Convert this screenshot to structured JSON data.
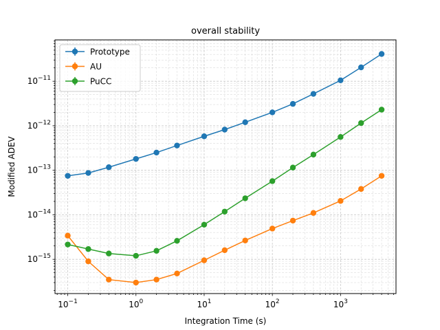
{
  "chart_data": {
    "type": "line",
    "title": "overall stability",
    "xlabel": "Integration Time (s)",
    "ylabel": "Modified ADEV",
    "xscale": "log",
    "yscale": "log",
    "xlim": [
      0.065,
      6500
    ],
    "ylim": [
      1.7e-16,
      8.5e-11
    ],
    "grid": "major and minor, dashed",
    "legend_position": "top-left",
    "error_bars": true,
    "x": [
      0.1,
      0.2,
      0.4,
      1,
      2,
      4,
      10,
      20,
      40,
      100,
      200,
      400,
      1000,
      2000,
      4000
    ],
    "x_ticks": [
      {
        "value": 0.1,
        "label_base": "10",
        "label_exp": "−1"
      },
      {
        "value": 1,
        "label_base": "10",
        "label_exp": "0"
      },
      {
        "value": 10,
        "label_base": "10",
        "label_exp": "1"
      },
      {
        "value": 100,
        "label_base": "10",
        "label_exp": "2"
      },
      {
        "value": 1000,
        "label_base": "10",
        "label_exp": "3"
      }
    ],
    "y_ticks": [
      {
        "value": 1e-15,
        "label_base": "10",
        "label_exp": "−15"
      },
      {
        "value": 1e-14,
        "label_base": "10",
        "label_exp": "−14"
      },
      {
        "value": 1e-13,
        "label_base": "10",
        "label_exp": "−13"
      },
      {
        "value": 1e-12,
        "label_base": "10",
        "label_exp": "−12"
      },
      {
        "value": 1e-11,
        "label_base": "10",
        "label_exp": "−11"
      }
    ],
    "series": [
      {
        "name": "Prototype",
        "color": "#1f77b4",
        "values": [
          7.5e-14,
          8.7e-14,
          1.17e-13,
          1.8e-13,
          2.5e-13,
          3.6e-13,
          5.8e-13,
          8.2e-13,
          1.2e-12,
          2e-12,
          3.1e-12,
          5.2e-12,
          1.05e-11,
          2.05e-11,
          4.1e-11
        ]
      },
      {
        "name": "AU",
        "color": "#ff7f0e",
        "values": [
          3.4e-15,
          9e-16,
          3.5e-16,
          3e-16,
          3.5e-16,
          4.8e-16,
          9.5e-16,
          1.6e-15,
          2.65e-15,
          4.9e-15,
          7.4e-15,
          1.1e-14,
          2.05e-14,
          3.8e-14,
          7.5e-14
        ]
      },
      {
        "name": "PuCC",
        "color": "#2ca02c",
        "values": [
          2.15e-15,
          1.7e-15,
          1.35e-15,
          1.2e-15,
          1.55e-15,
          2.6e-15,
          6e-15,
          1.18e-14,
          2.35e-14,
          5.7e-14,
          1.15e-13,
          2.25e-13,
          5.6e-13,
          1.15e-12,
          2.3e-12
        ]
      }
    ]
  }
}
